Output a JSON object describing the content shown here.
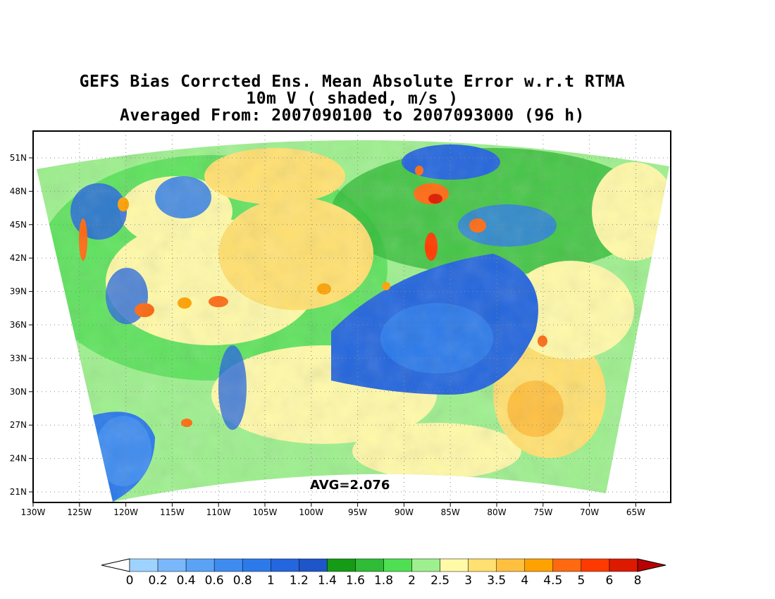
{
  "title": {
    "line1": "GEFS Bias Corrcted Ens. Mean Absolute Error w.r.t RTMA",
    "line2": "10m V ( shaded, m/s )",
    "line3": "Averaged From: 2007090100 to 2007093000 (96 h)"
  },
  "avg_label": "AVG=2.076",
  "lat_labels": [
    "51N",
    "48N",
    "45N",
    "42N",
    "39N",
    "36N",
    "33N",
    "30N",
    "27N",
    "24N",
    "21N"
  ],
  "lon_labels": [
    "130W",
    "125W",
    "120W",
    "115W",
    "110W",
    "105W",
    "100W",
    "95W",
    "90W",
    "85W",
    "80W",
    "75W",
    "70W",
    "65W"
  ],
  "colorbar": {
    "labels": [
      "0",
      "0.2",
      "0.4",
      "0.6",
      "0.8",
      "1",
      "1.2",
      "1.4",
      "1.6",
      "1.8",
      "2",
      "2.5",
      "3",
      "3.5",
      "4",
      "4.5",
      "5",
      "6",
      "8"
    ],
    "colors": [
      "#9fd3ff",
      "#7ab8fb",
      "#5aa2f5",
      "#3f8cf0",
      "#2c7aea",
      "#2466dd",
      "#1e55c8",
      "#169b16",
      "#2fbc36",
      "#4fdf52",
      "#9ef08e",
      "#fff9a8",
      "#ffe070",
      "#ffc040",
      "#ffa200",
      "#ff6a10",
      "#ff3a00",
      "#dd1a00"
    ],
    "under_color": "#ffffff",
    "over_color": "#b80000"
  }
}
